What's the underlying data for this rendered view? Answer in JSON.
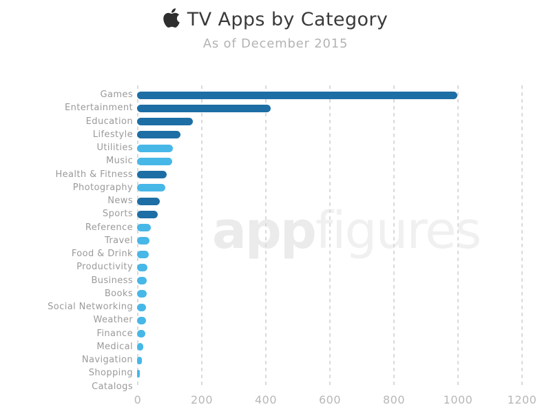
{
  "header": {
    "title": "TV Apps by Category",
    "subtitle": "As of December 2015"
  },
  "watermark": {
    "part1": "app",
    "part2": "figures"
  },
  "colors": {
    "bar_dark": "#1d6ea5",
    "bar_light": "#47b7e8",
    "grid": "#dadada",
    "title": "#3a3a3a",
    "subtitle": "#b3b3b3",
    "category_label": "#9a9a9a",
    "tick_label": "#b7b7b7",
    "watermark": "#eeeeee"
  },
  "chart_data": {
    "type": "bar",
    "orientation": "horizontal",
    "title": "TV Apps by Category",
    "subtitle": "As of December 2015",
    "grid": "vertical-dashed",
    "legend": "none",
    "xlim": [
      0,
      1200
    ],
    "x_ticks": [
      0,
      200,
      400,
      600,
      800,
      1000,
      1200
    ],
    "x_tick_labels": [
      "0",
      "200",
      "400",
      "600",
      "800",
      "1000",
      "1200"
    ],
    "categories": [
      "Games",
      "Entertainment",
      "Education",
      "Lifestyle",
      "Utilities",
      "Music",
      "Health & Fitness",
      "Photography",
      "News",
      "Sports",
      "Reference",
      "Travel",
      "Food & Drink",
      "Productivity",
      "Business",
      "Books",
      "Social Networking",
      "Weather",
      "Finance",
      "Medical",
      "Navigation",
      "Shopping",
      "Catalogs"
    ],
    "values": [
      1000,
      417,
      174,
      136,
      112,
      110,
      92,
      88,
      71,
      65,
      43,
      38,
      36,
      33,
      31,
      30,
      29,
      27,
      25,
      20,
      15,
      8,
      0
    ],
    "bar_shades": [
      "dark",
      "dark",
      "dark",
      "dark",
      "light",
      "light",
      "dark",
      "light",
      "dark",
      "dark",
      "light",
      "light",
      "light",
      "light",
      "light",
      "light",
      "light",
      "light",
      "light",
      "light",
      "light",
      "light",
      "light"
    ]
  }
}
